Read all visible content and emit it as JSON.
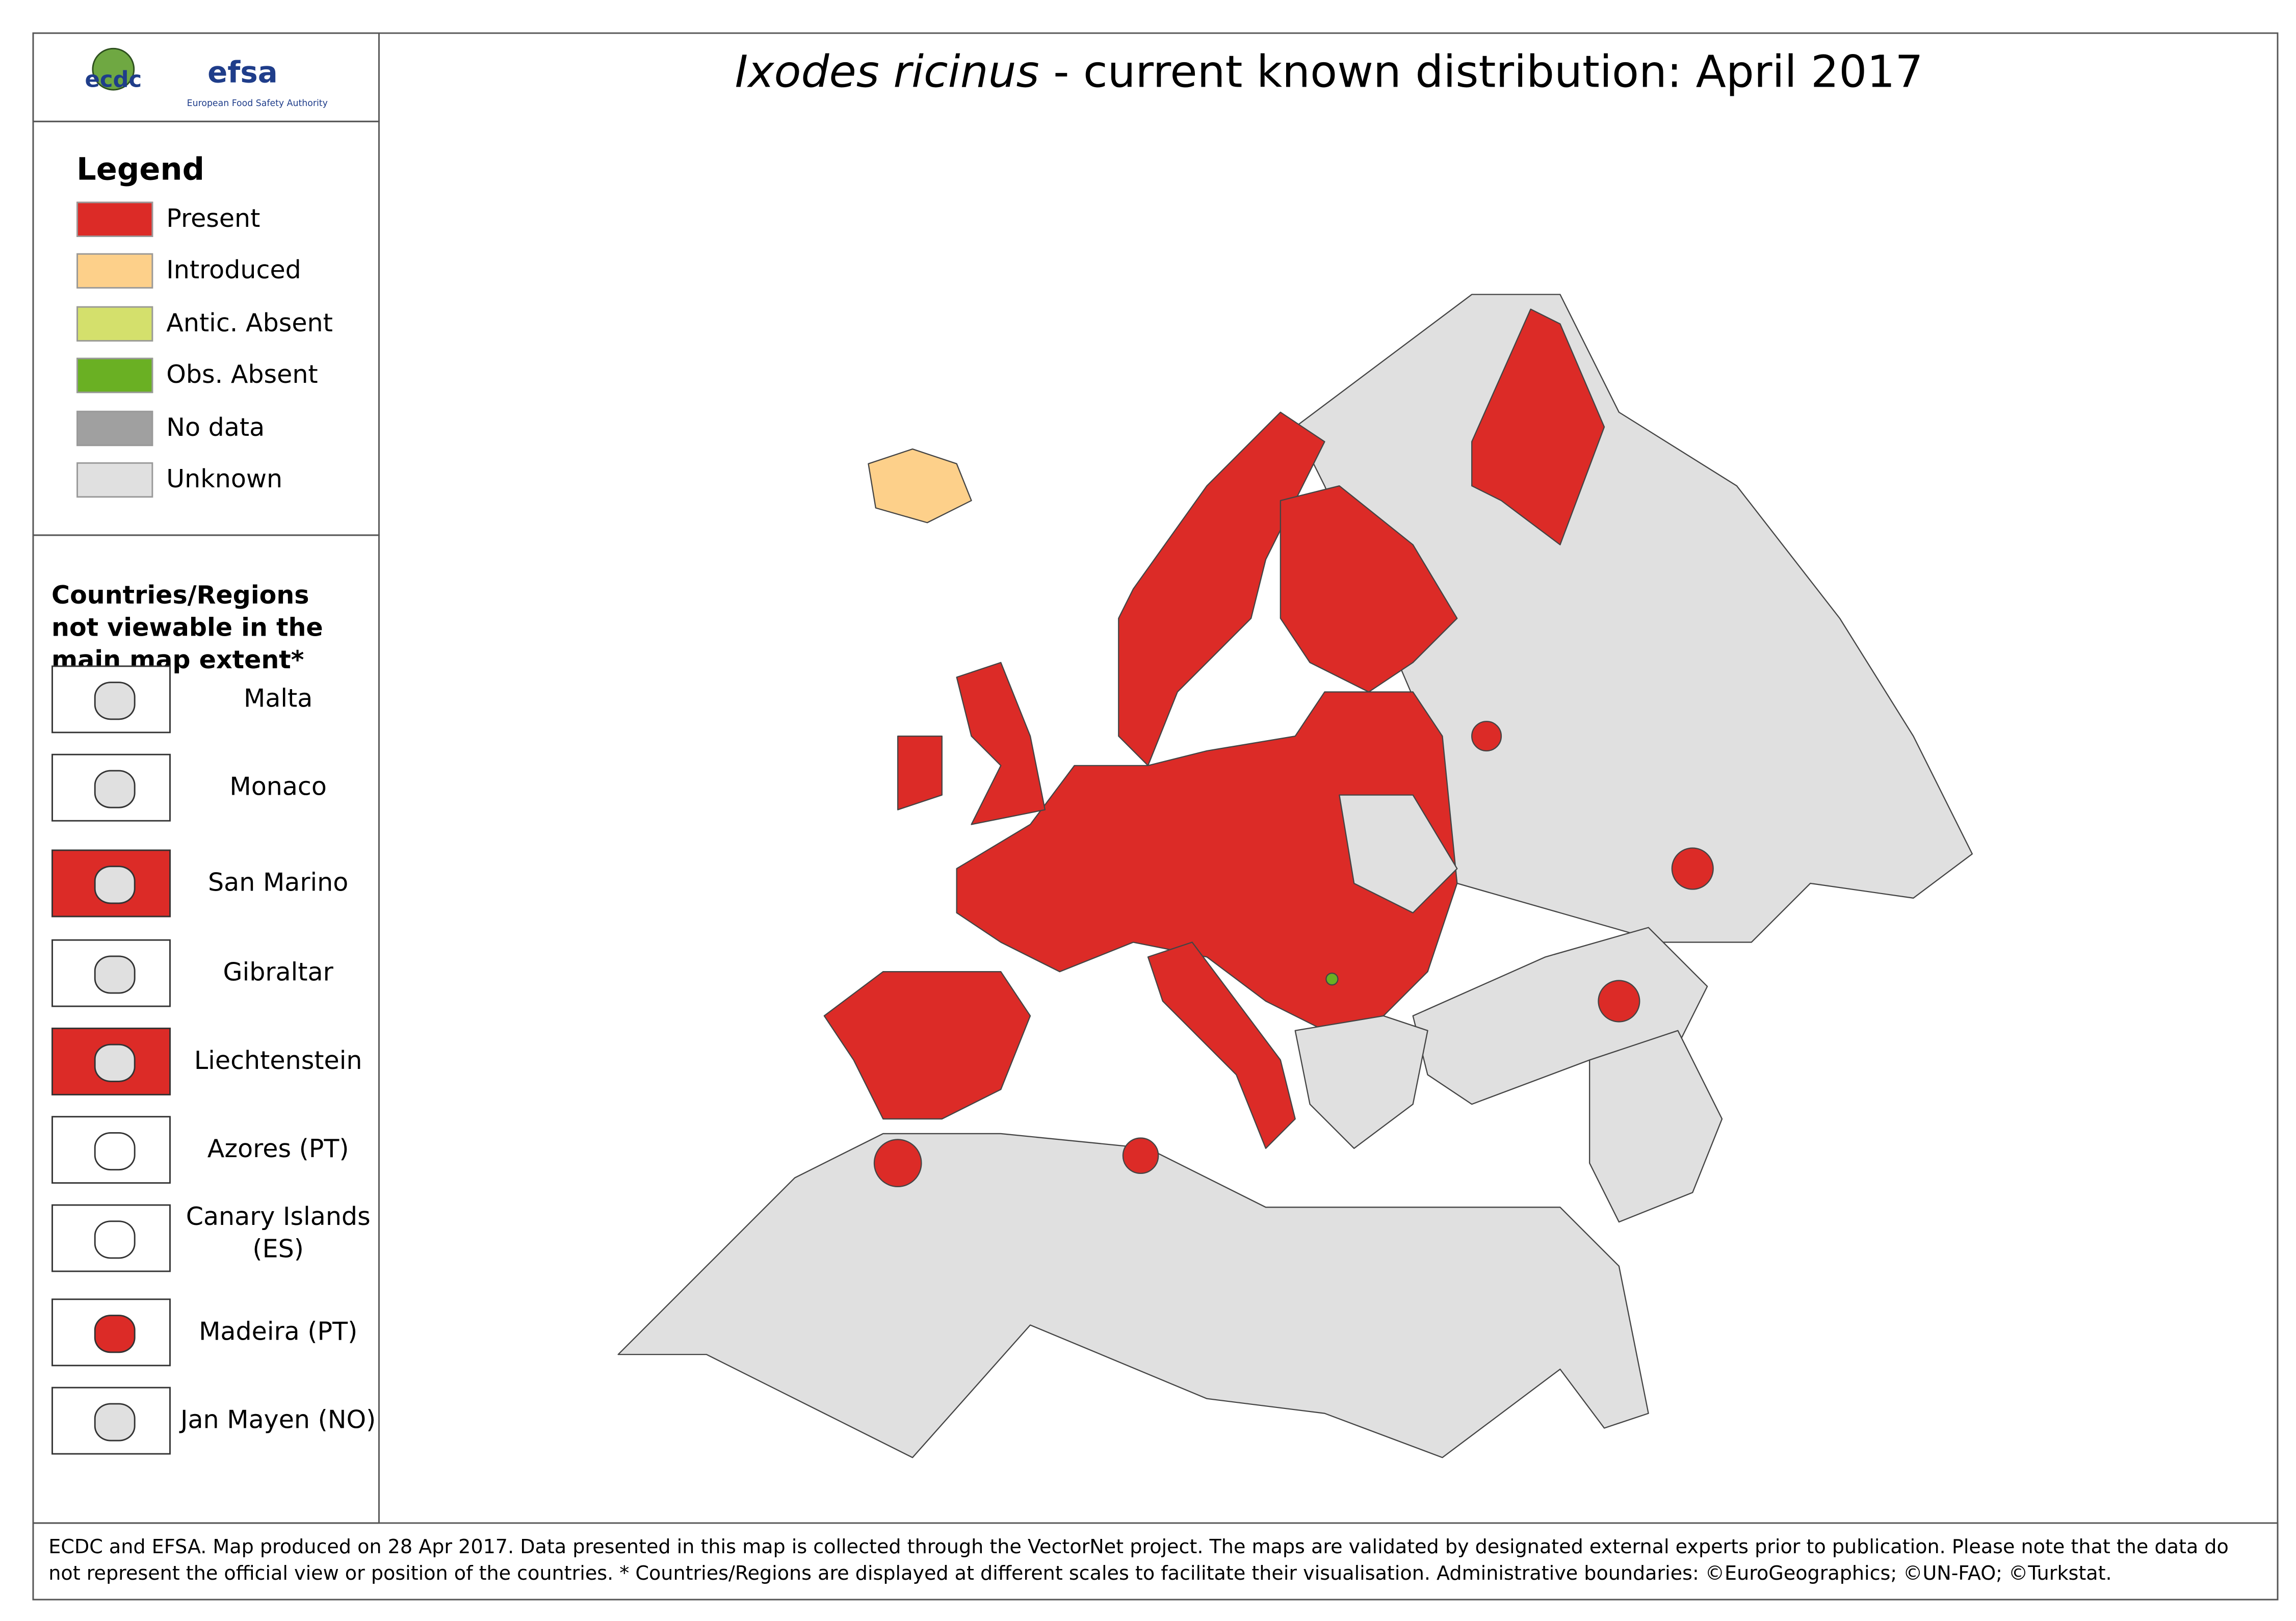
{
  "header": {
    "title_species": "Ixodes ricinus",
    "title_rest": "- current known distribution: April 2017",
    "logos": [
      "ecdc",
      "efsa"
    ],
    "efsa_subtitle": "European Food Safety Authority"
  },
  "legend": {
    "title": "Legend",
    "items": [
      {
        "label": "Present",
        "color": "#dc2b27"
      },
      {
        "label": "Introduced",
        "color": "#fdd08a"
      },
      {
        "label": "Antic. Absent",
        "color": "#d4e06c"
      },
      {
        "label": "Obs. Absent",
        "color": "#6ab023"
      },
      {
        "label": "No data",
        "color": "#a0a0a0"
      },
      {
        "label": "Unknown",
        "color": "#e0e0e0"
      }
    ]
  },
  "insets": {
    "title": "Countries/Regions not viewable in the main map extent*",
    "items": [
      "Malta",
      "Monaco",
      "San Marino",
      "Gibraltar",
      "Liechtenstein",
      "Azores (PT)",
      "Canary Islands (ES)",
      "Madeira (PT)",
      "Jan Mayen (NO)"
    ]
  },
  "footer": "ECDC and EFSA. Map produced on 28 Apr 2017. Data presented in this map is collected through the VectorNet project. The maps are validated by designated external experts prior to publication. Please note that the data do not represent the official view or position of the countries. * Countries/Regions are displayed at different scales to facilitate their visualisation. Administrative boundaries: ©EuroGeographics; ©UN-FAO; ©Turkstat."
}
